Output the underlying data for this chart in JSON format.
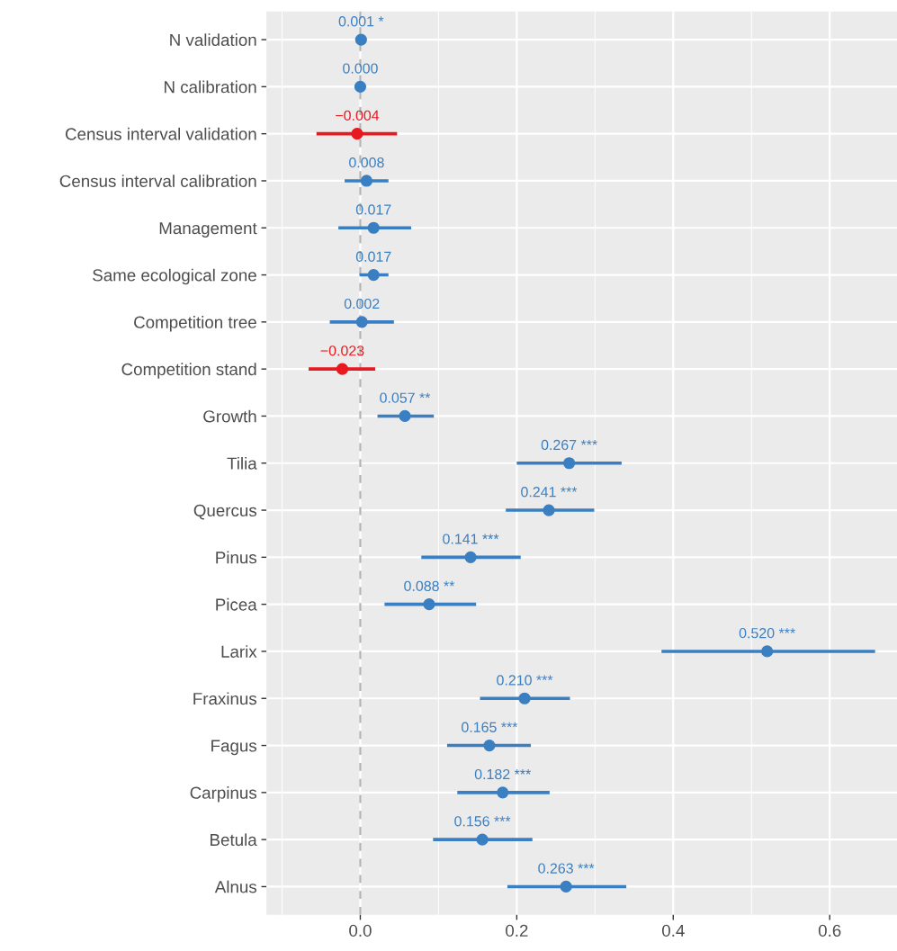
{
  "chart_data": {
    "type": "scatter",
    "orientation": "horizontal",
    "categories": [
      "N validation",
      "N calibration",
      "Census interval validation",
      "Census interval calibration",
      "Management",
      "Same ecological zone",
      "Competition tree",
      "Competition stand",
      "Growth",
      "Tilia",
      "Quercus",
      "Pinus",
      "Picea",
      "Larix",
      "Fraxinus",
      "Fagus",
      "Carpinus",
      "Betula",
      "Alnus"
    ],
    "values": [
      0.001,
      0.0,
      -0.004,
      0.008,
      0.017,
      0.017,
      0.002,
      -0.023,
      0.057,
      0.267,
      0.241,
      0.141,
      0.088,
      0.52,
      0.21,
      0.165,
      0.182,
      0.156,
      0.263
    ],
    "value_labels": [
      "0.001 *",
      "0.000",
      "−0.004",
      "0.008",
      "0.017",
      "0.017",
      "0.002",
      "−0.023",
      "0.057 **",
      "0.267 ***",
      "0.241 ***",
      "0.141 ***",
      "0.088 **",
      "0.520 ***",
      "0.210 ***",
      "0.165 ***",
      "0.182 ***",
      "0.156 ***",
      "0.263 ***"
    ],
    "errors": [
      null,
      null,
      [
        -0.056,
        0.047
      ],
      [
        -0.02,
        0.036
      ],
      [
        -0.028,
        0.065
      ],
      [
        -0.001,
        0.036
      ],
      [
        -0.039,
        0.043
      ],
      [
        -0.066,
        0.019
      ],
      [
        0.022,
        0.094
      ],
      [
        0.2,
        0.334
      ],
      [
        0.186,
        0.299
      ],
      [
        0.078,
        0.205
      ],
      [
        0.031,
        0.148
      ],
      [
        0.385,
        0.658
      ],
      [
        0.153,
        0.268
      ],
      [
        0.111,
        0.218
      ],
      [
        0.124,
        0.242
      ],
      [
        0.093,
        0.22
      ],
      [
        0.188,
        0.34
      ]
    ],
    "colors": [
      "#3a7fc1",
      "#3a7fc1",
      "#e8191f",
      "#3a7fc1",
      "#3a7fc1",
      "#3a7fc1",
      "#3a7fc1",
      "#e8191f",
      "#3a7fc1",
      "#3a7fc1",
      "#3a7fc1",
      "#3a7fc1",
      "#3a7fc1",
      "#3a7fc1",
      "#3a7fc1",
      "#3a7fc1",
      "#3a7fc1",
      "#3a7fc1",
      "#3a7fc1"
    ],
    "xlim": [
      -0.12,
      0.686
    ],
    "xticks": [
      {
        "value": 0,
        "label": "0.0"
      },
      {
        "value": 0.2,
        "label": "0.2"
      },
      {
        "value": 0.4,
        "label": "0.4"
      },
      {
        "value": 0.6,
        "label": "0.6"
      }
    ],
    "ref_lines": [
      {
        "axis": "x",
        "value": 0,
        "color": "#b3b3b3",
        "line_style": "dashed"
      }
    ],
    "grid": true,
    "marker": "circle"
  }
}
